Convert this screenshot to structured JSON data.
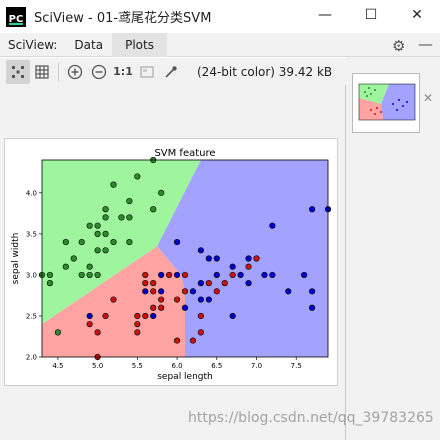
{
  "window": {
    "icon_text": "PC",
    "title": "SciView - 01-鸢尾花分类SVM",
    "minimize_glyph": "—",
    "maximize_glyph": "☐",
    "close_glyph": "✕"
  },
  "tabs": {
    "label": "SciView:",
    "data": "Data",
    "plots": "Plots",
    "active": "Plots"
  },
  "toolbar": {
    "icons": [
      "fit-grid-icon",
      "grid-icon",
      "zoom-in-icon",
      "zoom-out-icon",
      "actual-size-icon",
      "background-icon",
      "color-picker-icon"
    ],
    "actual_size_label": "1:1",
    "image_info": "(24-bit color) 39.42 kB"
  },
  "watermark": "https://blog.csdn.net/qq_39783265",
  "colors": {
    "region_green": "#9ef59e",
    "region_red": "#ffa3a3",
    "region_blue": "#a3a3ff",
    "point_green": "#2e8b2e",
    "point_red": "#cc1111",
    "point_blue": "#0000cc"
  },
  "chart_data": {
    "type": "scatter",
    "title": "SVM feature",
    "xlabel": "sepal length",
    "ylabel": "sepal width",
    "xlim": [
      4.3,
      7.9
    ],
    "ylim": [
      2.0,
      4.4
    ],
    "xticks": [
      "4.5",
      "5.0",
      "5.5",
      "6.0",
      "6.5",
      "7.0",
      "7.5"
    ],
    "yticks": [
      "2.0",
      "2.5",
      "3.0",
      "3.5",
      "4.0"
    ],
    "decision_regions": {
      "green": [
        [
          4.3,
          2.4
        ],
        [
          5.75,
          3.35
        ],
        [
          6.3,
          4.4
        ],
        [
          4.3,
          4.4
        ]
      ],
      "red": [
        [
          4.3,
          2.0
        ],
        [
          4.3,
          2.4
        ],
        [
          5.75,
          3.35
        ],
        [
          6.05,
          3.0
        ],
        [
          6.1,
          2.8
        ],
        [
          6.1,
          2.0
        ]
      ],
      "blue": [
        [
          6.3,
          4.4
        ],
        [
          7.9,
          4.4
        ],
        [
          7.9,
          2.0
        ],
        [
          6.1,
          2.0
        ],
        [
          6.1,
          2.8
        ],
        [
          6.05,
          3.0
        ],
        [
          5.75,
          3.35
        ]
      ]
    },
    "series": [
      {
        "color": "green",
        "points": [
          [
            4.4,
            2.9
          ],
          [
            4.4,
            3.0
          ],
          [
            4.5,
            2.3
          ],
          [
            4.6,
            3.1
          ],
          [
            4.6,
            3.4
          ],
          [
            4.7,
            3.2
          ],
          [
            4.8,
            3.0
          ],
          [
            4.8,
            3.4
          ],
          [
            4.9,
            3.1
          ],
          [
            4.9,
            3.6
          ],
          [
            5.0,
            3.0
          ],
          [
            5.0,
            3.3
          ],
          [
            5.0,
            3.5
          ],
          [
            5.1,
            3.3
          ],
          [
            5.1,
            3.5
          ],
          [
            5.1,
            3.8
          ],
          [
            5.2,
            3.4
          ],
          [
            5.2,
            4.1
          ],
          [
            5.3,
            3.7
          ],
          [
            5.4,
            3.4
          ],
          [
            5.4,
            3.9
          ],
          [
            5.5,
            4.2
          ],
          [
            5.7,
            3.8
          ],
          [
            5.7,
            4.4
          ],
          [
            5.8,
            4.0
          ],
          [
            4.3,
            3.0
          ],
          [
            5.0,
            3.6
          ],
          [
            5.4,
            3.7
          ],
          [
            4.9,
            3.0
          ],
          [
            5.1,
            3.7
          ]
        ]
      },
      {
        "color": "red",
        "points": [
          [
            4.9,
            2.4
          ],
          [
            5.0,
            2.0
          ],
          [
            5.0,
            2.3
          ],
          [
            5.1,
            2.5
          ],
          [
            5.2,
            2.7
          ],
          [
            5.5,
            2.3
          ],
          [
            5.5,
            2.4
          ],
          [
            5.5,
            2.5
          ],
          [
            5.6,
            2.5
          ],
          [
            5.6,
            2.9
          ],
          [
            5.7,
            2.6
          ],
          [
            5.7,
            2.8
          ],
          [
            5.8,
            2.7
          ],
          [
            5.9,
            3.0
          ],
          [
            6.0,
            2.2
          ],
          [
            6.0,
            2.7
          ],
          [
            6.1,
            2.8
          ],
          [
            6.2,
            2.2
          ],
          [
            6.3,
            2.3
          ],
          [
            6.3,
            2.5
          ],
          [
            6.4,
            2.9
          ],
          [
            6.5,
            2.8
          ],
          [
            6.6,
            2.9
          ],
          [
            6.7,
            3.0
          ],
          [
            6.9,
            3.1
          ],
          [
            7.0,
            3.2
          ],
          [
            6.1,
            3.0
          ],
          [
            5.6,
            3.0
          ],
          [
            5.7,
            2.9
          ],
          [
            5.8,
            2.6
          ]
        ]
      },
      {
        "color": "blue",
        "points": [
          [
            4.9,
            2.5
          ],
          [
            5.6,
            2.8
          ],
          [
            5.7,
            2.5
          ],
          [
            5.8,
            2.8
          ],
          [
            6.0,
            3.0
          ],
          [
            6.1,
            2.6
          ],
          [
            6.2,
            2.8
          ],
          [
            6.3,
            2.7
          ],
          [
            6.3,
            3.3
          ],
          [
            6.4,
            2.7
          ],
          [
            6.4,
            3.2
          ],
          [
            6.5,
            3.0
          ],
          [
            6.5,
            3.2
          ],
          [
            6.7,
            2.5
          ],
          [
            6.7,
            3.1
          ],
          [
            6.8,
            3.0
          ],
          [
            6.9,
            3.2
          ],
          [
            7.1,
            3.0
          ],
          [
            7.2,
            3.0
          ],
          [
            7.2,
            3.6
          ],
          [
            7.4,
            2.8
          ],
          [
            7.6,
            3.0
          ],
          [
            7.7,
            2.6
          ],
          [
            7.7,
            2.8
          ],
          [
            7.7,
            3.8
          ],
          [
            7.9,
            3.8
          ],
          [
            6.0,
            3.4
          ],
          [
            6.3,
            2.9
          ],
          [
            5.8,
            3.0
          ],
          [
            6.9,
            2.9
          ]
        ]
      }
    ]
  }
}
